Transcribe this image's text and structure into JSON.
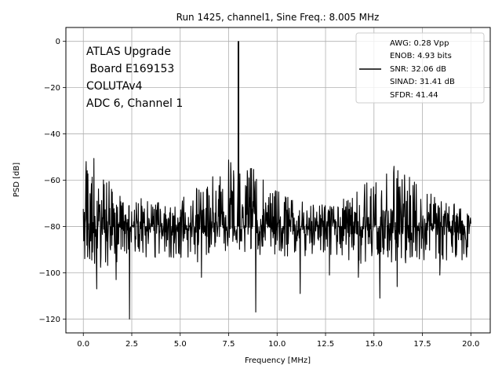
{
  "chart_data": {
    "type": "line",
    "title": "Run 1425, channel1, Sine Freq.: 8.005 MHz",
    "xlabel": "Frequency [MHz]",
    "ylabel": "PSD [dB]",
    "xlim": [
      -0.9,
      21.0
    ],
    "ylim": [
      -126,
      6
    ],
    "xticks": [
      0.0,
      2.5,
      5.0,
      7.5,
      10.0,
      12.5,
      15.0,
      17.5,
      20.0
    ],
    "xtick_labels": [
      "0.0",
      "2.5",
      "5.0",
      "7.5",
      "10.0",
      "12.5",
      "15.0",
      "17.5",
      "20.0"
    ],
    "yticks": [
      0,
      -20,
      -40,
      -60,
      -80,
      -100,
      -120
    ],
    "ytick_labels": [
      "0",
      "−20",
      "−40",
      "−60",
      "−80",
      "−100",
      "−120"
    ],
    "grid": true,
    "series_color": "#000000",
    "info_lines": [
      "ATLAS Upgrade",
      " Board E169153",
      "COLUTAv4",
      "ADC 6, Channel 1"
    ],
    "legend": {
      "placement": "top-right",
      "lines": [
        "AWG: 0.28 Vpp",
        "ENOB: 4.93 bits",
        "SNR: 32.06 dB",
        "SINAD: 31.41 dB",
        "SFDR: 41.44"
      ]
    },
    "series": [
      {
        "name": "PSD",
        "description": "Noise floor around -80 dB with dense fluctuations; signal spike at 8.005 MHz reaching 0 dB",
        "fundamental": {
          "x": 8.005,
          "y": 0
        },
        "noise_floor_db": -80,
        "envelope": [
          {
            "x": 0.0,
            "max": -52,
            "min": -95
          },
          {
            "x": 0.5,
            "max": -47,
            "min": -98
          },
          {
            "x": 1.0,
            "max": -56,
            "min": -100
          },
          {
            "x": 1.5,
            "max": -62,
            "min": -97
          },
          {
            "x": 2.0,
            "max": -68,
            "min": -94
          },
          {
            "x": 2.5,
            "max": -70,
            "min": -94
          },
          {
            "x": 3.0,
            "max": -67,
            "min": -95
          },
          {
            "x": 4.0,
            "max": -70,
            "min": -93
          },
          {
            "x": 5.0,
            "max": -68,
            "min": -94
          },
          {
            "x": 6.0,
            "max": -62,
            "min": -96
          },
          {
            "x": 6.5,
            "max": -58,
            "min": -92
          },
          {
            "x": 7.0,
            "max": -54,
            "min": -92
          },
          {
            "x": 7.5,
            "max": -48,
            "min": -91
          },
          {
            "x": 8.5,
            "max": -50,
            "min": -92
          },
          {
            "x": 9.0,
            "max": -56,
            "min": -93
          },
          {
            "x": 9.5,
            "max": -62,
            "min": -95
          },
          {
            "x": 10.5,
            "max": -67,
            "min": -94
          },
          {
            "x": 12.0,
            "max": -71,
            "min": -93
          },
          {
            "x": 13.0,
            "max": -69,
            "min": -94
          },
          {
            "x": 14.0,
            "max": -66,
            "min": -96
          },
          {
            "x": 15.0,
            "max": -58,
            "min": -96
          },
          {
            "x": 15.5,
            "max": -52,
            "min": -96
          },
          {
            "x": 16.0,
            "max": -48,
            "min": -98
          },
          {
            "x": 16.5,
            "max": -56,
            "min": -96
          },
          {
            "x": 17.5,
            "max": -64,
            "min": -95
          },
          {
            "x": 18.5,
            "max": -68,
            "min": -95
          },
          {
            "x": 19.5,
            "max": -71,
            "min": -95
          },
          {
            "x": 20.0,
            "max": -72,
            "min": -94
          }
        ],
        "deep_dips": [
          {
            "x": 0.7,
            "y": -107
          },
          {
            "x": 1.7,
            "y": -103
          },
          {
            "x": 2.38,
            "y": -120
          },
          {
            "x": 6.1,
            "y": -102
          },
          {
            "x": 8.9,
            "y": -117
          },
          {
            "x": 11.2,
            "y": -109
          },
          {
            "x": 12.7,
            "y": -101
          },
          {
            "x": 14.2,
            "y": -102
          },
          {
            "x": 15.3,
            "y": -111
          },
          {
            "x": 16.2,
            "y": -106
          },
          {
            "x": 18.4,
            "y": -101
          }
        ]
      }
    ]
  }
}
